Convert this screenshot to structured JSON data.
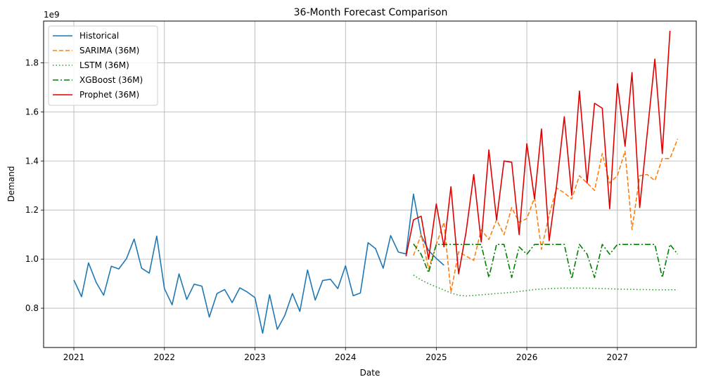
{
  "chart_data": {
    "type": "line",
    "title": "36-Month Forecast Comparison",
    "xlabel": "Date",
    "ylabel": "Demand",
    "y_offset_label": "1e9",
    "xlim": [
      "2020-09-01",
      "2027-11-15"
    ],
    "ylim": [
      0.64,
      1.97
    ],
    "x_ticks": [
      {
        "date": "2021-01-01",
        "label": "2021"
      },
      {
        "date": "2022-01-01",
        "label": "2022"
      },
      {
        "date": "2023-01-01",
        "label": "2023"
      },
      {
        "date": "2024-01-01",
        "label": "2024"
      },
      {
        "date": "2025-01-01",
        "label": "2025"
      },
      {
        "date": "2026-01-01",
        "label": "2026"
      },
      {
        "date": "2027-01-01",
        "label": "2027"
      }
    ],
    "y_ticks": [
      {
        "value": 0.8,
        "label": "0.8"
      },
      {
        "value": 1.0,
        "label": "1.0"
      },
      {
        "value": 1.2,
        "label": "1.2"
      },
      {
        "value": 1.4,
        "label": "1.4"
      },
      {
        "value": 1.6,
        "label": "1.6"
      },
      {
        "value": 1.8,
        "label": "1.8"
      }
    ],
    "grid": true,
    "legend_position": "top-left",
    "series": [
      {
        "name": "Historical",
        "color": "#1f77b4",
        "dash": "solid",
        "start": "2021-01",
        "values": [
          0.915,
          0.847,
          0.985,
          0.905,
          0.853,
          0.971,
          0.96,
          1.002,
          1.082,
          0.963,
          0.943,
          1.094,
          0.88,
          0.814,
          0.94,
          0.836,
          0.898,
          0.89,
          0.764,
          0.86,
          0.876,
          0.823,
          0.883,
          0.866,
          0.843,
          0.698,
          0.855,
          0.714,
          0.77,
          0.86,
          0.787,
          0.956,
          0.833,
          0.913,
          0.918,
          0.88,
          0.973,
          0.851,
          0.862,
          1.067,
          1.043,
          0.963,
          1.096,
          1.029,
          1.021,
          1.265,
          1.097,
          1.035,
          1.003,
          0.975
        ]
      },
      {
        "name": "SARIMA (36M)",
        "color": "#ff7f0e",
        "dash": "dashed",
        "start": "2024-10",
        "values": [
          1.015,
          1.1,
          0.96,
          1.06,
          1.15,
          0.865,
          1.03,
          1.012,
          0.995,
          1.12,
          1.08,
          1.16,
          1.1,
          1.21,
          1.15,
          1.165,
          1.25,
          1.04,
          1.18,
          1.29,
          1.27,
          1.245,
          1.34,
          1.31,
          1.28,
          1.43,
          1.31,
          1.34,
          1.44,
          1.12,
          1.34,
          1.345,
          1.32,
          1.41,
          1.41,
          1.49
        ]
      },
      {
        "name": "LSTM (36M)",
        "color": "#2ca02c",
        "dash": "dotted",
        "start": "2024-10",
        "values": [
          0.935,
          0.915,
          0.9,
          0.887,
          0.874,
          0.862,
          0.853,
          0.85,
          0.852,
          0.855,
          0.857,
          0.86,
          0.862,
          0.865,
          0.868,
          0.872,
          0.876,
          0.878,
          0.88,
          0.881,
          0.882,
          0.882,
          0.882,
          0.882,
          0.881,
          0.88,
          0.879,
          0.878,
          0.877,
          0.877,
          0.876,
          0.876,
          0.875,
          0.875,
          0.875,
          0.875
        ]
      },
      {
        "name": "XGBoost (36M)",
        "color": "#008000",
        "dash": "dashdot",
        "start": "2024-10",
        "values": [
          1.062,
          1.02,
          0.945,
          1.06,
          1.06,
          1.06,
          1.06,
          1.06,
          1.06,
          1.06,
          0.925,
          1.06,
          1.06,
          0.925,
          1.05,
          1.02,
          1.06,
          1.06,
          1.06,
          1.06,
          1.06,
          0.92,
          1.06,
          1.02,
          0.925,
          1.06,
          1.02,
          1.06,
          1.06,
          1.06,
          1.06,
          1.06,
          1.06,
          0.925,
          1.06,
          1.02
        ]
      },
      {
        "name": "Prophet (36M)",
        "color": "#e00000",
        "dash": "solid",
        "start": "2024-09",
        "values": [
          1.012,
          1.16,
          1.175,
          1.0,
          1.225,
          1.05,
          1.295,
          0.94,
          1.11,
          1.345,
          1.07,
          1.445,
          1.16,
          1.4,
          1.395,
          1.1,
          1.47,
          1.245,
          1.53,
          1.075,
          1.3,
          1.58,
          1.26,
          1.685,
          1.31,
          1.635,
          1.615,
          1.205,
          1.715,
          1.46,
          1.76,
          1.21,
          1.51,
          1.815,
          1.43,
          1.93
        ]
      }
    ]
  }
}
